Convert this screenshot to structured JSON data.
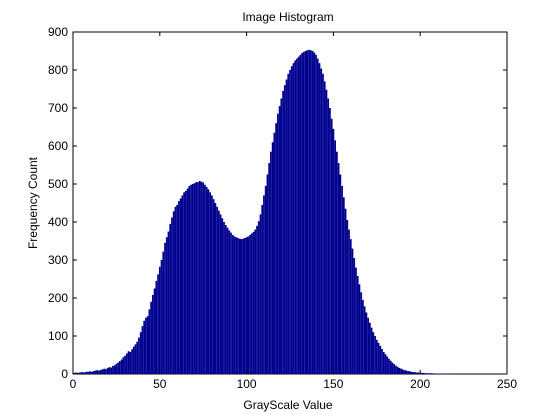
{
  "chart_data": {
    "type": "bar",
    "title": "Image Histogram",
    "xlabel": "GrayScale Value",
    "ylabel": "Frequency Count",
    "xlim": [
      0,
      250
    ],
    "ylim": [
      0,
      900
    ],
    "x_ticks": [
      "0",
      "50",
      "100",
      "150",
      "200",
      "250"
    ],
    "y_ticks": [
      "0",
      "100",
      "200",
      "300",
      "400",
      "500",
      "600",
      "700",
      "800",
      "900"
    ],
    "grid": false,
    "bar_color": "#00008f",
    "bins": [
      0,
      1,
      2,
      3,
      4,
      5,
      6,
      7,
      8,
      9,
      10,
      11,
      12,
      13,
      14,
      15,
      16,
      17,
      18,
      19,
      20,
      21,
      22,
      23,
      24,
      25,
      26,
      27,
      28,
      29,
      30,
      31,
      32,
      33,
      34,
      35,
      36,
      37,
      38,
      39,
      40,
      41,
      42,
      43,
      44,
      45,
      46,
      47,
      48,
      49,
      50,
      51,
      52,
      53,
      54,
      55,
      56,
      57,
      58,
      59,
      60,
      61,
      62,
      63,
      64,
      65,
      66,
      67,
      68,
      69,
      70,
      71,
      72,
      73,
      74,
      75,
      76,
      77,
      78,
      79,
      80,
      81,
      82,
      83,
      84,
      85,
      86,
      87,
      88,
      89,
      90,
      91,
      92,
      93,
      94,
      95,
      96,
      97,
      98,
      99,
      100,
      101,
      102,
      103,
      104,
      105,
      106,
      107,
      108,
      109,
      110,
      111,
      112,
      113,
      114,
      115,
      116,
      117,
      118,
      119,
      120,
      121,
      122,
      123,
      124,
      125,
      126,
      127,
      128,
      129,
      130,
      131,
      132,
      133,
      134,
      135,
      136,
      137,
      138,
      139,
      140,
      141,
      142,
      143,
      144,
      145,
      146,
      147,
      148,
      149,
      150,
      151,
      152,
      153,
      154,
      155,
      156,
      157,
      158,
      159,
      160,
      161,
      162,
      163,
      164,
      165,
      166,
      167,
      168,
      169,
      170,
      171,
      172,
      173,
      174,
      175,
      176,
      177,
      178,
      179,
      180,
      181,
      182,
      183,
      184,
      185,
      186,
      187,
      188,
      189,
      190,
      191,
      192,
      193,
      194,
      195,
      196,
      197,
      198,
      199,
      200,
      201,
      202,
      203,
      204,
      205,
      206,
      207,
      208,
      209,
      210,
      211,
      212,
      213,
      214,
      215,
      216,
      217,
      218,
      219,
      220,
      221,
      222,
      223,
      224,
      225,
      226,
      227,
      228,
      229,
      230,
      231,
      232,
      233,
      234,
      235,
      236,
      237,
      238,
      239,
      240,
      241,
      242,
      243,
      244,
      245,
      246,
      247,
      248,
      249,
      250
    ],
    "values": [
      3,
      3,
      4,
      3,
      4,
      5,
      4,
      5,
      6,
      6,
      7,
      6,
      8,
      9,
      10,
      9,
      11,
      12,
      14,
      13,
      16,
      18,
      17,
      21,
      23,
      27,
      30,
      34,
      38,
      44,
      48,
      54,
      60,
      58,
      65,
      72,
      78,
      85,
      96,
      110,
      126,
      140,
      148,
      152,
      170,
      190,
      208,
      225,
      245,
      262,
      282,
      300,
      322,
      345,
      360,
      375,
      395,
      412,
      428,
      440,
      445,
      455,
      462,
      470,
      478,
      482,
      488,
      495,
      498,
      500,
      502,
      505,
      505,
      508,
      506,
      504,
      498,
      492,
      486,
      478,
      470,
      460,
      450,
      440,
      430,
      420,
      410,
      400,
      392,
      385,
      378,
      372,
      366,
      362,
      360,
      358,
      356,
      355,
      356,
      358,
      360,
      362,
      366,
      370,
      374,
      380,
      390,
      402,
      420,
      445,
      470,
      495,
      525,
      555,
      585,
      610,
      635,
      660,
      685,
      705,
      725,
      745,
      760,
      775,
      790,
      800,
      810,
      818,
      825,
      830,
      835,
      840,
      845,
      848,
      850,
      852,
      853,
      852,
      850,
      846,
      840,
      830,
      818,
      804,
      790,
      770,
      748,
      725,
      700,
      672,
      645,
      615,
      585,
      555,
      525,
      495,
      465,
      435,
      405,
      380,
      355,
      330,
      305,
      280,
      258,
      236,
      215,
      195,
      178,
      162,
      148,
      135,
      122,
      110,
      100,
      90,
      82,
      74,
      66,
      58,
      52,
      46,
      40,
      35,
      30,
      26,
      22,
      19,
      16,
      14,
      12,
      10,
      9,
      8,
      7,
      6,
      5,
      5,
      4,
      4,
      3,
      3,
      3,
      2,
      2,
      2,
      2,
      2,
      1,
      1,
      1,
      1,
      1,
      1,
      1,
      1,
      1,
      0,
      0,
      0,
      0,
      0,
      0,
      0,
      0,
      0,
      0,
      0,
      0,
      0,
      0,
      0,
      0,
      0,
      0,
      0,
      0,
      0,
      0,
      0,
      0,
      0,
      0,
      0,
      0,
      0,
      0,
      0,
      0,
      0,
      0
    ]
  }
}
